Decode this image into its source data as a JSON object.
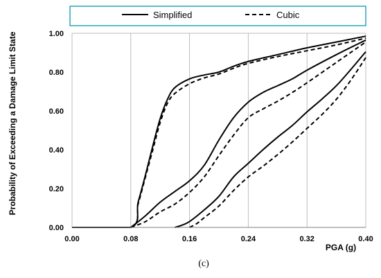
{
  "chart_data": {
    "type": "line",
    "title": "",
    "xlabel": "PGA (g)",
    "ylabel": "Probability of  Exceeding a Damage Limit State",
    "caption": "(c)",
    "xlim": [
      0,
      0.4
    ],
    "ylim": [
      0,
      1.0
    ],
    "x_ticks": [
      "0.00",
      "0.08",
      "0.16",
      "0.24",
      "0.32",
      "0.40"
    ],
    "y_ticks": [
      "0.00",
      "0.20",
      "0.40",
      "0.60",
      "0.80",
      "1.00"
    ],
    "grid": "vertical",
    "legend_position": "top",
    "legend": [
      {
        "label": "Simplified",
        "style": "solid"
      },
      {
        "label": "Cubic",
        "style": "dashed"
      }
    ],
    "series": [
      {
        "type": "Simplified",
        "points": [
          [
            0,
            0
          ],
          [
            0.08,
            0
          ],
          [
            0.09,
            0.13
          ],
          [
            0.1,
            0.27
          ],
          [
            0.11,
            0.42
          ],
          [
            0.12,
            0.56
          ],
          [
            0.13,
            0.66
          ],
          [
            0.14,
            0.72
          ],
          [
            0.16,
            0.765
          ],
          [
            0.18,
            0.785
          ],
          [
            0.2,
            0.8
          ],
          [
            0.22,
            0.83
          ],
          [
            0.24,
            0.855
          ],
          [
            0.28,
            0.89
          ],
          [
            0.32,
            0.925
          ],
          [
            0.36,
            0.955
          ],
          [
            0.4,
            0.985
          ]
        ]
      },
      {
        "type": "Cubic",
        "points": [
          [
            0,
            0
          ],
          [
            0.08,
            0
          ],
          [
            0.09,
            0.12
          ],
          [
            0.1,
            0.26
          ],
          [
            0.11,
            0.4
          ],
          [
            0.12,
            0.54
          ],
          [
            0.13,
            0.64
          ],
          [
            0.14,
            0.69
          ],
          [
            0.16,
            0.74
          ],
          [
            0.18,
            0.77
          ],
          [
            0.2,
            0.79
          ],
          [
            0.22,
            0.82
          ],
          [
            0.24,
            0.845
          ],
          [
            0.28,
            0.88
          ],
          [
            0.32,
            0.91
          ],
          [
            0.36,
            0.94
          ],
          [
            0.4,
            0.975
          ]
        ]
      },
      {
        "type": "Simplified",
        "points": [
          [
            0.08,
            0
          ],
          [
            0.1,
            0.06
          ],
          [
            0.12,
            0.13
          ],
          [
            0.14,
            0.185
          ],
          [
            0.16,
            0.24
          ],
          [
            0.18,
            0.32
          ],
          [
            0.2,
            0.45
          ],
          [
            0.22,
            0.565
          ],
          [
            0.24,
            0.645
          ],
          [
            0.26,
            0.695
          ],
          [
            0.28,
            0.73
          ],
          [
            0.3,
            0.765
          ],
          [
            0.32,
            0.81
          ],
          [
            0.36,
            0.89
          ],
          [
            0.4,
            0.965
          ]
        ]
      },
      {
        "type": "Cubic",
        "points": [
          [
            0.08,
            0
          ],
          [
            0.1,
            0.03
          ],
          [
            0.12,
            0.08
          ],
          [
            0.14,
            0.12
          ],
          [
            0.16,
            0.18
          ],
          [
            0.18,
            0.26
          ],
          [
            0.2,
            0.37
          ],
          [
            0.22,
            0.475
          ],
          [
            0.24,
            0.565
          ],
          [
            0.26,
            0.61
          ],
          [
            0.28,
            0.65
          ],
          [
            0.3,
            0.695
          ],
          [
            0.32,
            0.745
          ],
          [
            0.36,
            0.85
          ],
          [
            0.4,
            0.955
          ]
        ]
      },
      {
        "type": "Simplified",
        "points": [
          [
            0.14,
            0
          ],
          [
            0.15,
            0.012
          ],
          [
            0.16,
            0.03
          ],
          [
            0.18,
            0.09
          ],
          [
            0.2,
            0.16
          ],
          [
            0.22,
            0.26
          ],
          [
            0.24,
            0.33
          ],
          [
            0.26,
            0.4
          ],
          [
            0.28,
            0.465
          ],
          [
            0.3,
            0.525
          ],
          [
            0.32,
            0.595
          ],
          [
            0.34,
            0.66
          ],
          [
            0.36,
            0.73
          ],
          [
            0.38,
            0.815
          ],
          [
            0.4,
            0.905
          ]
        ]
      },
      {
        "type": "Cubic",
        "points": [
          [
            0.16,
            0
          ],
          [
            0.17,
            0.02
          ],
          [
            0.18,
            0.05
          ],
          [
            0.2,
            0.11
          ],
          [
            0.22,
            0.19
          ],
          [
            0.24,
            0.26
          ],
          [
            0.26,
            0.315
          ],
          [
            0.28,
            0.375
          ],
          [
            0.3,
            0.44
          ],
          [
            0.32,
            0.51
          ],
          [
            0.34,
            0.58
          ],
          [
            0.36,
            0.66
          ],
          [
            0.38,
            0.76
          ],
          [
            0.4,
            0.875
          ]
        ]
      }
    ]
  }
}
